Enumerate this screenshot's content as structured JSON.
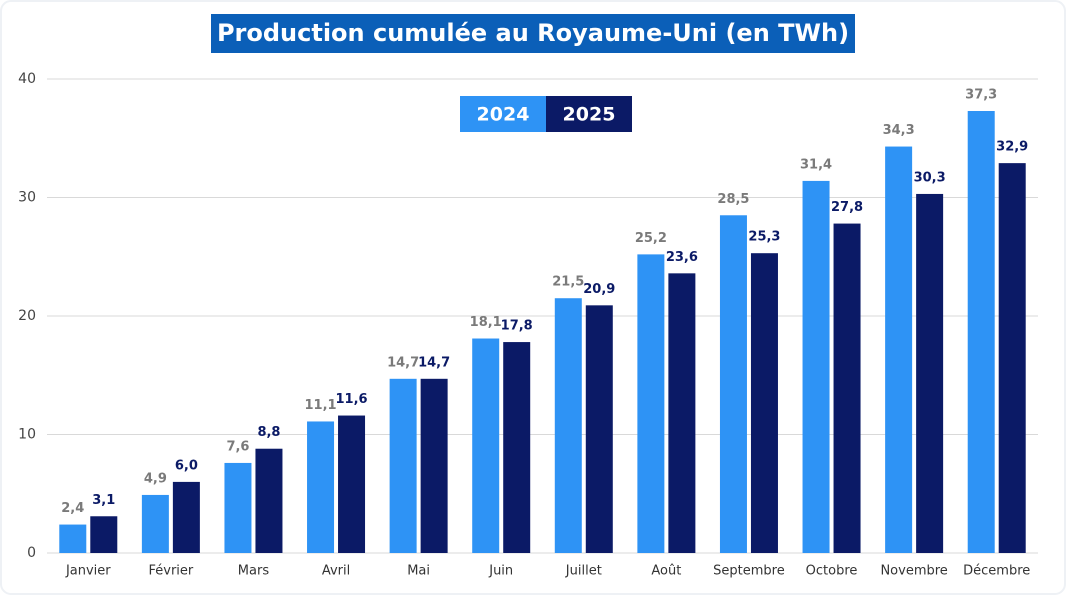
{
  "chart_data": {
    "type": "bar",
    "title": "Production cumulée au Royaume-Uni (en TWh)",
    "categories": [
      "Janvier",
      "Février",
      "Mars",
      "Avril",
      "Mai",
      "Juin",
      "Juillet",
      "Août",
      "Septembre",
      "Octobre",
      "Novembre",
      "Décembre"
    ],
    "series": [
      {
        "name": "2024",
        "color": "#2e93f5",
        "values": [
          2.4,
          4.9,
          7.6,
          11.1,
          14.7,
          18.1,
          21.5,
          25.2,
          28.5,
          31.4,
          34.3,
          37.3
        ],
        "value_labels": [
          "2,4",
          "4,9",
          "7,6",
          "11,1",
          "14,7",
          "18,1",
          "21,5",
          "25,2",
          "28,5",
          "31,4",
          "34,3",
          "37,3"
        ]
      },
      {
        "name": "2025",
        "color": "#0b1a66",
        "values": [
          3.1,
          6.0,
          8.8,
          11.6,
          14.7,
          17.8,
          20.9,
          23.6,
          25.3,
          27.8,
          30.3,
          32.9
        ],
        "value_labels": [
          "3,1",
          "6,0",
          "8,8",
          "11,6",
          "14,7",
          "17,8",
          "20,9",
          "23,6",
          "25,3",
          "27,8",
          "30,3",
          "32,9"
        ]
      }
    ],
    "ylim": [
      0,
      40
    ],
    "yticks": [
      0,
      10,
      20,
      30,
      40
    ],
    "grid": true,
    "legend": "top"
  }
}
